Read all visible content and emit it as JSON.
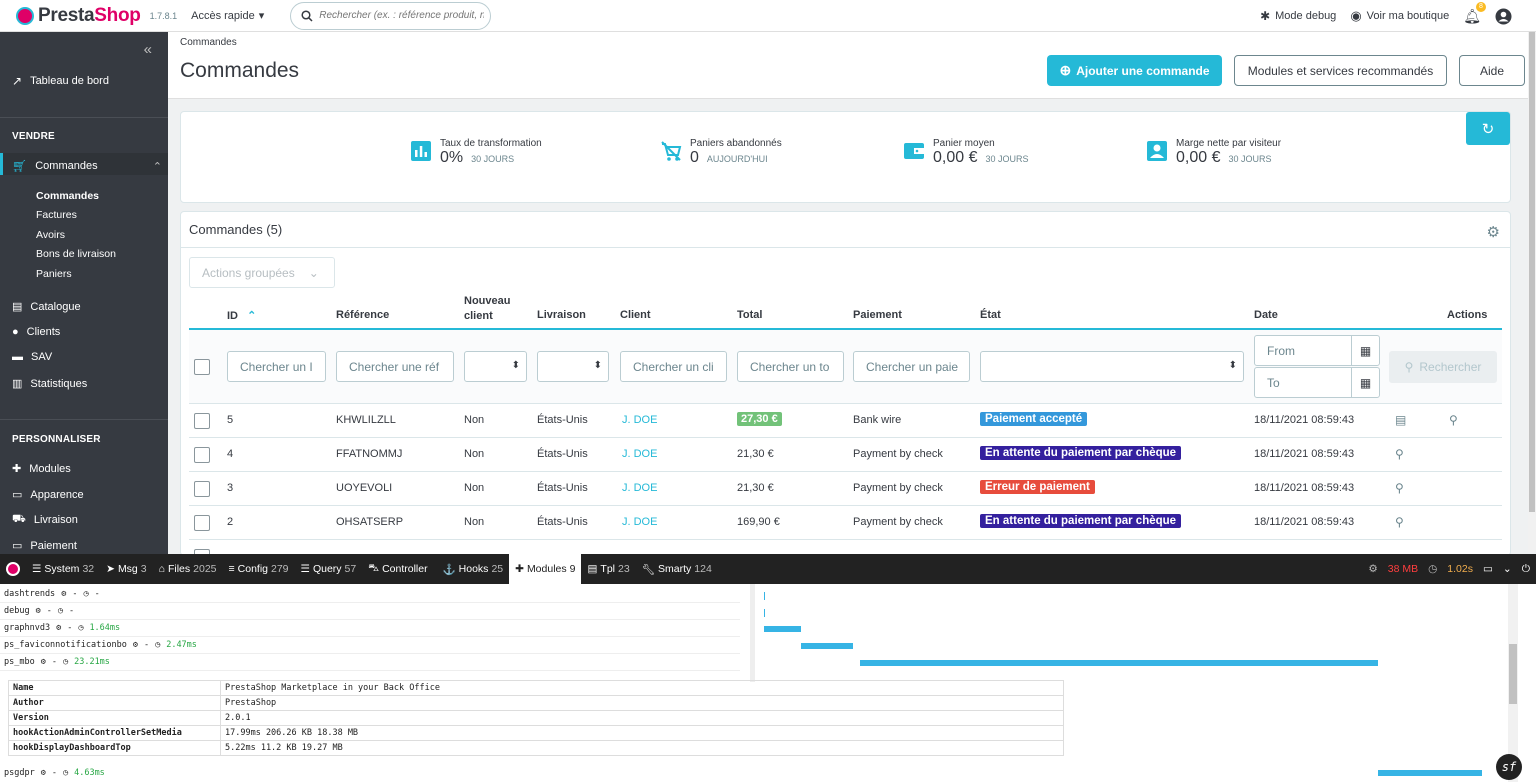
{
  "topbar": {
    "brand_pre": "Presta",
    "brand_post": "Shop",
    "version": "1.7.8.1",
    "quick_access": "Accès rapide",
    "search_placeholder": "Rechercher (ex. : référence produit, no",
    "debug_label": "Mode debug",
    "shop_label": "Voir ma boutique",
    "notif_count": "8"
  },
  "sidebar": {
    "dashboard": "Tableau de bord",
    "section_sell": "VENDRE",
    "orders": "Commandes",
    "sub": [
      "Commandes",
      "Factures",
      "Avoirs",
      "Bons de livraison",
      "Paniers"
    ],
    "catalog": "Catalogue",
    "clients": "Clients",
    "sav": "SAV",
    "stats": "Statistiques",
    "section_custom": "PERSONNALISER",
    "modules": "Modules",
    "appearance": "Apparence",
    "shipping": "Livraison",
    "payment": "Paiement"
  },
  "header": {
    "breadcrumb": "Commandes",
    "title": "Commandes",
    "add_order": "Ajouter une commande",
    "recommended": "Modules et services recommandés",
    "help": "Aide"
  },
  "kpis": [
    {
      "label": "Taux de transformation",
      "value": "0%",
      "sub": "30 JOURS"
    },
    {
      "label": "Paniers abandonnés",
      "value": "0",
      "sub": "AUJOURD'HUI"
    },
    {
      "label": "Panier moyen",
      "value": "0,00 €",
      "sub": "30 JOURS"
    },
    {
      "label": "Marge nette par visiteur",
      "value": "0,00 €",
      "sub": "30 JOURS"
    }
  ],
  "orders": {
    "title": "Commandes (5)",
    "bulk_actions": "Actions groupées",
    "columns": {
      "id": "ID",
      "reference": "Référence",
      "new_client_1": "Nouveau",
      "new_client_2": "client",
      "delivery": "Livraison",
      "client": "Client",
      "total": "Total",
      "payment": "Paiement",
      "state": "État",
      "date": "Date",
      "actions": "Actions"
    },
    "filters": {
      "id": "Chercher un I",
      "reference": "Chercher une réf",
      "client": "Chercher un cli",
      "total": "Chercher un to",
      "payment": "Chercher un paie",
      "from": "From",
      "to": "To",
      "search_button": "Rechercher"
    },
    "rows": [
      {
        "id": "5",
        "ref": "KHWLILZLL",
        "new": "Non",
        "country": "États-Unis",
        "client": "J. DOE",
        "total": "27,30 €",
        "payment": "Bank wire",
        "state": "Paiement accepté",
        "state_color": "#3498db",
        "date": "18/11/2021 08:59:43"
      },
      {
        "id": "4",
        "ref": "FFATNOMMJ",
        "new": "Non",
        "country": "États-Unis",
        "client": "J. DOE",
        "total": "21,30 €",
        "payment": "Payment by check",
        "state": "En attente du paiement par chèque",
        "state_color": "#34209e",
        "date": "18/11/2021 08:59:43"
      },
      {
        "id": "3",
        "ref": "UOYEVOLI",
        "new": "Non",
        "country": "États-Unis",
        "client": "J. DOE",
        "total": "21,30 €",
        "payment": "Payment by check",
        "state": "Erreur de paiement",
        "state_color": "#e74c3c",
        "date": "18/11/2021 08:59:43"
      },
      {
        "id": "2",
        "ref": "OHSATSERP",
        "new": "Non",
        "country": "États-Unis",
        "client": "J. DOE",
        "total": "169,90 €",
        "payment": "Payment by check",
        "state": "En attente du paiement par chèque",
        "state_color": "#34209e",
        "date": "18/11/2021 08:59:43"
      }
    ]
  },
  "profiler": {
    "items": [
      {
        "label": "System",
        "num": "32"
      },
      {
        "label": "Msg",
        "num": "3"
      },
      {
        "label": "Files",
        "num": "2025"
      },
      {
        "label": "Config",
        "num": "279"
      },
      {
        "label": "Query",
        "num": "57"
      },
      {
        "label": "Controller",
        "num": ""
      },
      {
        "label": "Hooks",
        "num": "25"
      },
      {
        "label": "Modules",
        "num": "9"
      },
      {
        "label": "Tpl",
        "num": "23"
      },
      {
        "label": "Smarty",
        "num": "124"
      }
    ],
    "memory": "38 MB",
    "time": "1.02s",
    "modules": [
      {
        "name": "dashtrends",
        "time": ""
      },
      {
        "name": "debug",
        "time": ""
      },
      {
        "name": "graphnvd3",
        "time": "1.64ms"
      },
      {
        "name": "ps_faviconnotificationbo",
        "time": "2.47ms"
      },
      {
        "name": "ps_mbo",
        "time": "23.21ms"
      }
    ],
    "details": [
      {
        "k": "Name",
        "v": "PrestaShop Marketplace in your Back Office"
      },
      {
        "k": "Author",
        "v": "PrestaShop"
      },
      {
        "k": "Version",
        "v": "2.0.1"
      },
      {
        "k": "hookActionAdminControllerSetMedia",
        "v": "17.99ms 206.26 KB 18.38 MB"
      },
      {
        "k": "hookDisplayDashboardTop",
        "v": "5.22ms 11.2 KB 19.27 MB"
      }
    ],
    "last_module": {
      "name": "psgdpr",
      "time": "4.63ms"
    },
    "dash": "-"
  }
}
